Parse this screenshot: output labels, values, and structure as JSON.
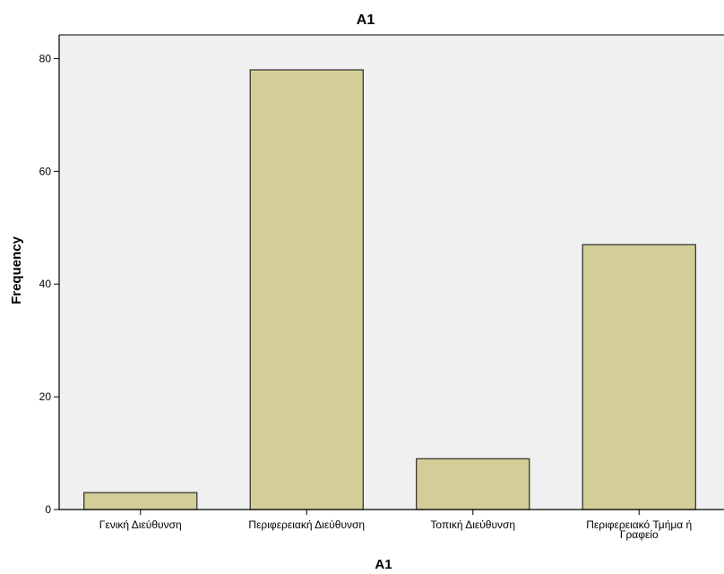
{
  "chart_data": {
    "type": "bar",
    "title": "A1",
    "xlabel": "A1",
    "ylabel": "Frequency",
    "categories": [
      "Γενική Διεύθυνση",
      "Περιφερειακή Διεύθυνση",
      "Τοπική Διεύθυνση",
      "Περιφερειακό Τμήμα ή Γραφείο"
    ],
    "category_lines": [
      [
        "Γενική Διεύθυνση"
      ],
      [
        "Περιφερειακή Διεύθυνση"
      ],
      [
        "Τοπική Διεύθυνση"
      ],
      [
        "Περιφερειακό Τμήμα ή",
        "Γραφείο"
      ]
    ],
    "values": [
      3,
      78,
      9,
      47
    ],
    "ylim": [
      0,
      84.2
    ],
    "yticks": [
      0,
      20,
      40,
      60,
      80
    ],
    "grid": false,
    "colors": {
      "bar_fill": "#D3CE97",
      "bar_stroke": "#2b2b2b",
      "plot_background": "#F0F0F0",
      "frame": "#000000"
    }
  }
}
